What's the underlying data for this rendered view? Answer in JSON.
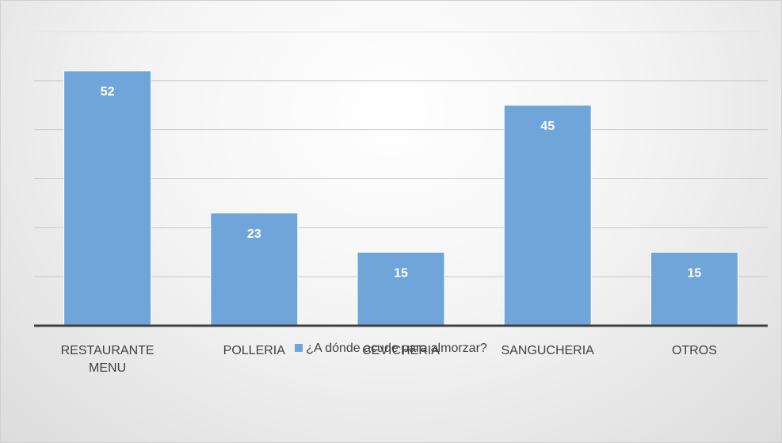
{
  "chart_data": {
    "type": "bar",
    "categories": [
      "RESTAURANTE MENU",
      "POLLERIA",
      "CEVICHERIA",
      "SANGUCHERIA",
      "OTROS"
    ],
    "series": [
      {
        "name": "¿A dónde acude para almorzar?",
        "color": "#70a5da",
        "values": [
          52,
          23,
          15,
          45,
          15
        ]
      }
    ],
    "ylim": [
      0,
      60
    ],
    "yticks": [
      0,
      10,
      20,
      30,
      40,
      50,
      60
    ],
    "grid": true,
    "legend": "bottom"
  }
}
